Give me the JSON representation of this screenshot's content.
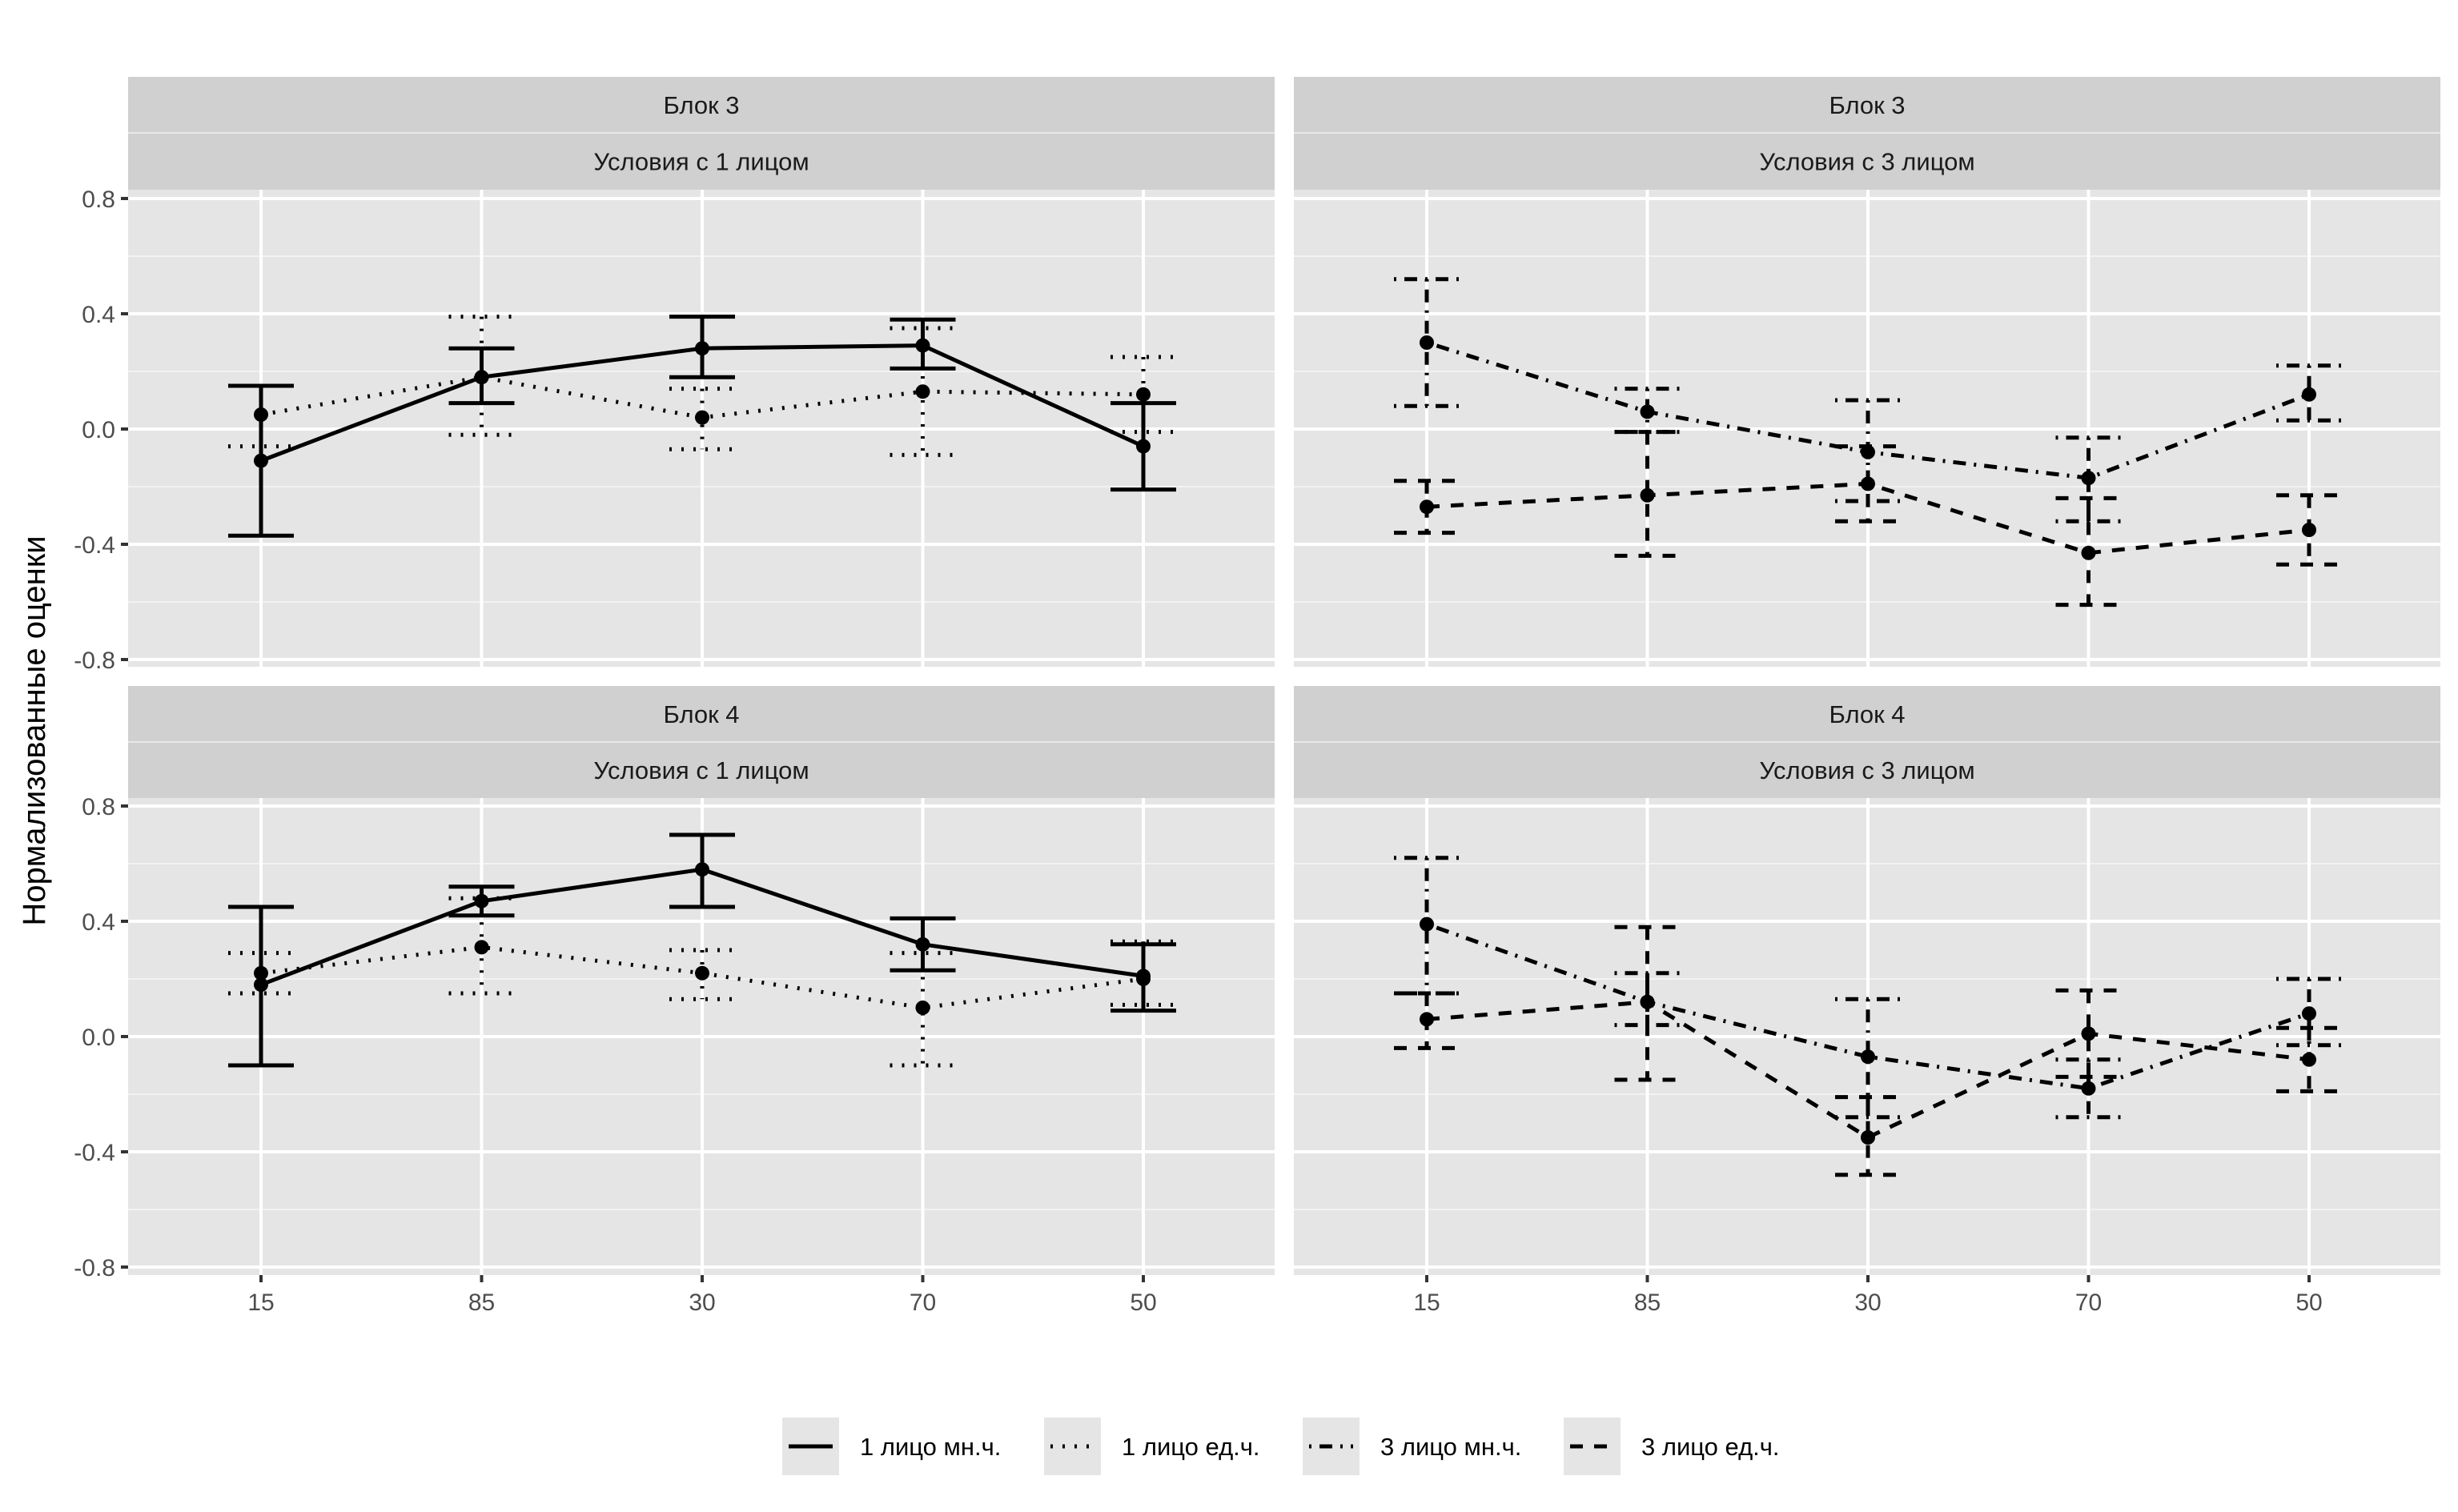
{
  "chart_data": {
    "type": "line",
    "facet_layout": "2x2 grid, rows = block, columns = condition",
    "ylabel": "Нормализованные оценки",
    "xlabel": "",
    "categories": [
      "15",
      "85",
      "30",
      "70",
      "50"
    ],
    "y_ticks": [
      "0.8",
      "0.4",
      "0.0",
      "-0.4",
      "-0.8"
    ],
    "y_tick_values": [
      0.8,
      0.4,
      0.0,
      -0.4,
      -0.8
    ],
    "ylim": [
      -0.82,
      0.82
    ],
    "grid": true,
    "legend_position": "bottom",
    "legend": [
      {
        "key": "sg1pl",
        "label": "1 лицо мн.ч.",
        "linetype": "solid"
      },
      {
        "key": "sg1sg",
        "label": "1 лицо ед.ч.",
        "linetype": "dotted"
      },
      {
        "key": "sg3pl",
        "label": "3 лицо мн.ч.",
        "linetype": "dotdash"
      },
      {
        "key": "sg3sg",
        "label": "3 лицо ед.ч.",
        "linetype": "dashed"
      }
    ],
    "panels": [
      {
        "strip_top": "Блок 3",
        "strip_bottom": "Условия с 1 лицом",
        "row": 0,
        "col": 0,
        "series": [
          {
            "name": "1 лицо мн.ч.",
            "linetype": "solid",
            "mean": [
              -0.11,
              0.18,
              0.28,
              0.29,
              -0.06
            ],
            "upper": [
              0.15,
              0.28,
              0.39,
              0.38,
              0.09
            ],
            "lower": [
              -0.37,
              0.09,
              0.18,
              0.21,
              -0.21
            ]
          },
          {
            "name": "1 лицо ед.ч.",
            "linetype": "dotted",
            "mean": [
              0.05,
              0.18,
              0.04,
              0.13,
              0.12
            ],
            "upper": [
              0.15,
              0.39,
              0.14,
              0.35,
              0.25
            ],
            "lower": [
              -0.06,
              -0.02,
              -0.07,
              -0.09,
              -0.01
            ]
          }
        ]
      },
      {
        "strip_top": "Блок 3",
        "strip_bottom": "Условия с 3 лицом",
        "row": 0,
        "col": 1,
        "series": [
          {
            "name": "3 лицо мн.ч.",
            "linetype": "dotdash",
            "mean": [
              0.3,
              0.06,
              -0.08,
              -0.17,
              0.12
            ],
            "upper": [
              0.52,
              0.14,
              0.1,
              -0.03,
              0.22
            ],
            "lower": [
              0.08,
              -0.01,
              -0.25,
              -0.32,
              0.03
            ]
          },
          {
            "name": "3 лицо ед.ч.",
            "linetype": "dashed",
            "mean": [
              -0.27,
              -0.23,
              -0.19,
              -0.43,
              -0.35
            ],
            "upper": [
              -0.18,
              -0.01,
              -0.06,
              -0.24,
              -0.23
            ],
            "lower": [
              -0.36,
              -0.44,
              -0.32,
              -0.61,
              -0.47
            ]
          }
        ]
      },
      {
        "strip_top": "Блок 4",
        "strip_bottom": "Условия с 1 лицом",
        "row": 1,
        "col": 0,
        "series": [
          {
            "name": "1 лицо мн.ч.",
            "linetype": "solid",
            "mean": [
              0.18,
              0.47,
              0.58,
              0.32,
              0.21
            ],
            "upper": [
              0.45,
              0.52,
              0.7,
              0.41,
              0.32
            ],
            "lower": [
              -0.1,
              0.42,
              0.45,
              0.23,
              0.09
            ]
          },
          {
            "name": "1 лицо ед.ч.",
            "linetype": "dotted",
            "mean": [
              0.22,
              0.31,
              0.22,
              0.1,
              0.2
            ],
            "upper": [
              0.29,
              0.48,
              0.3,
              0.29,
              0.33
            ],
            "lower": [
              0.15,
              0.15,
              0.13,
              -0.1,
              0.11
            ]
          }
        ]
      },
      {
        "strip_top": "Блок 4",
        "strip_bottom": "Условия с 3 лицом",
        "row": 1,
        "col": 1,
        "series": [
          {
            "name": "3 лицо мн.ч.",
            "linetype": "dotdash",
            "mean": [
              0.39,
              0.12,
              -0.07,
              -0.18,
              0.08
            ],
            "upper": [
              0.62,
              0.22,
              0.13,
              -0.08,
              0.2
            ],
            "lower": [
              0.15,
              0.04,
              -0.28,
              -0.28,
              -0.03
            ]
          },
          {
            "name": "3 лицо ед.ч.",
            "linetype": "dashed",
            "mean": [
              0.06,
              0.12,
              -0.35,
              0.01,
              -0.08
            ],
            "upper": [
              0.15,
              0.38,
              -0.21,
              0.16,
              0.03
            ],
            "lower": [
              -0.04,
              -0.15,
              -0.48,
              -0.14,
              -0.19
            ]
          }
        ]
      }
    ]
  }
}
